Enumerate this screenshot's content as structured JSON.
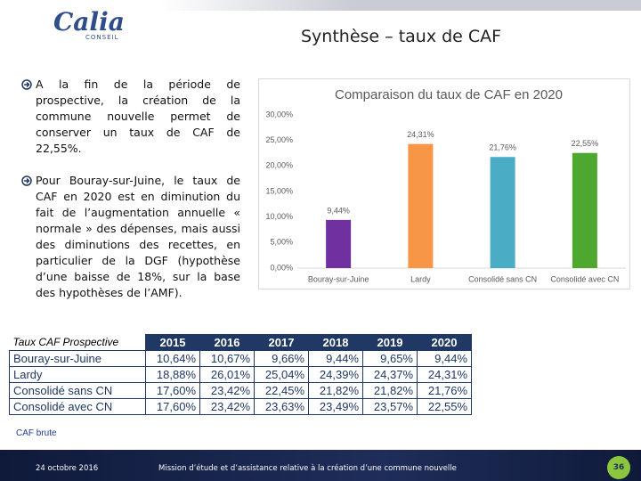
{
  "header": {
    "logo": "Calia",
    "logo_sub": "CONSEIL",
    "title": "Synthèse – taux de CAF"
  },
  "bullets": [
    "A la fin de la période de prospective, la création de la commune nouvelle permet de conserver un taux de CAF de 22,55%.",
    "Pour Bouray-sur-Juine, le taux de CAF en 2020 est en diminution du fait de l’augmentation annuelle « normale » des dépenses, mais aussi des diminutions des recettes, en particulier de la DGF (hypothèse d’une baisse de 18%, sur la base des hypothèses de l’AMF)."
  ],
  "chart_data": {
    "type": "bar",
    "title": "Comparaison du taux de CAF en 2020",
    "categories": [
      "Bouray-sur-Juine",
      "Lardy",
      "Consolidé sans CN",
      "Consolidé avec CN"
    ],
    "values": [
      9.44,
      24.31,
      21.76,
      22.55
    ],
    "value_labels": [
      "9,44%",
      "24,31%",
      "21,76%",
      "22,55%"
    ],
    "colors": [
      "#7030a0",
      "#f79646",
      "#4bacc6",
      "#4ea72e"
    ],
    "ylim": [
      0,
      30
    ],
    "yticks": [
      {
        "value": 0,
        "label": "0,00%"
      },
      {
        "value": 5,
        "label": "5,00%"
      },
      {
        "value": 10,
        "label": "10,00%"
      },
      {
        "value": 15,
        "label": "15,00%"
      },
      {
        "value": 20,
        "label": "20,00%"
      },
      {
        "value": 25,
        "label": "25,00%"
      },
      {
        "value": 30,
        "label": "30,00%"
      }
    ],
    "grid": false
  },
  "table": {
    "header": [
      "Taux CAF Prospective",
      "2015",
      "2016",
      "2017",
      "2018",
      "2019",
      "2020"
    ],
    "rows": [
      [
        "Bouray-sur-Juine",
        "10,64%",
        "10,67%",
        "9,66%",
        "9,44%",
        "9,65%",
        "9,44%"
      ],
      [
        "Lardy",
        "18,88%",
        "26,01%",
        "25,04%",
        "24,39%",
        "24,37%",
        "24,31%"
      ],
      [
        "Consolidé sans CN",
        "17,60%",
        "23,42%",
        "22,45%",
        "21,82%",
        "21,82%",
        "21,76%"
      ],
      [
        "Consolidé avec CN",
        "17,60%",
        "23,42%",
        "23,63%",
        "23,49%",
        "23,57%",
        "22,55%"
      ]
    ]
  },
  "note": "CAF brute",
  "footer": {
    "date": "24 octobre 2016",
    "text": "Mission d’étude et d’assistance relative à la création d’une commune nouvelle",
    "page": "36"
  }
}
